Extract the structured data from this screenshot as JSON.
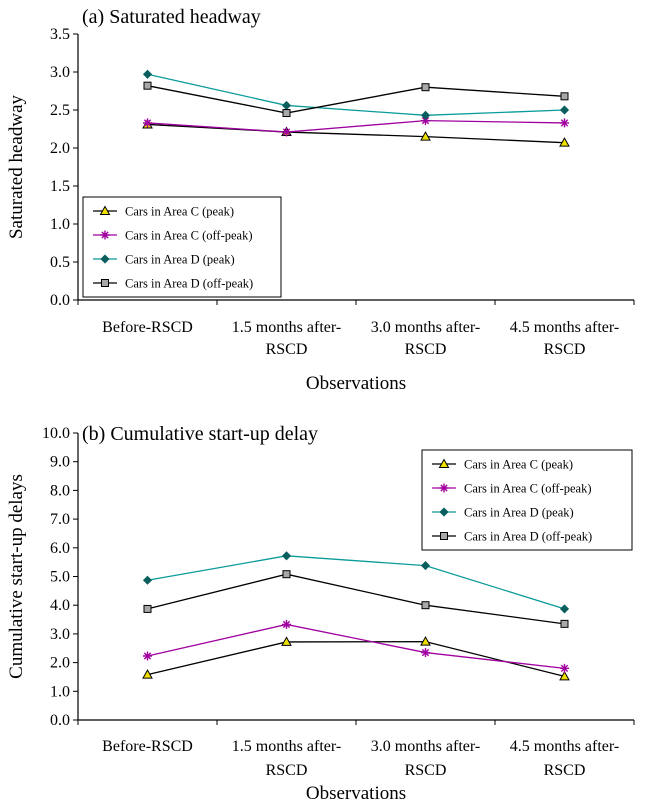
{
  "chart_data": [
    {
      "type": "line",
      "title": "(a) Saturated headway",
      "xlabel": "Observations",
      "ylabel": "Saturated headway",
      "ylim": [
        0,
        3.5
      ],
      "yticks": [
        "0.0",
        "0.5",
        "1.0",
        "1.5",
        "2.0",
        "2.5",
        "3.0",
        "3.5"
      ],
      "categories": [
        [
          "Before-RSCD"
        ],
        [
          "1.5 months after-",
          "RSCD"
        ],
        [
          "3.0 months after-",
          "RSCD"
        ],
        [
          "4.5 months after-",
          "RSCD"
        ]
      ],
      "legend_position": "bottom-left",
      "grid": false,
      "series": [
        {
          "name": "Cars in Area C (peak)",
          "values": [
            2.31,
            2.21,
            2.15,
            2.07
          ],
          "marker": "triangle",
          "line_color": "#000000",
          "marker_color": "#f0e000"
        },
        {
          "name": "Cars in Area C (off-peak)",
          "values": [
            2.33,
            2.21,
            2.36,
            2.33
          ],
          "marker": "star",
          "line_color": "#a000a0",
          "marker_color": "#a000a0"
        },
        {
          "name": "Cars in Area D (peak)",
          "values": [
            2.97,
            2.56,
            2.43,
            2.5
          ],
          "marker": "diamond",
          "line_color": "#0a9b9b",
          "marker_color": "#0a5e5e"
        },
        {
          "name": "Cars in Area D (off-peak)",
          "values": [
            2.82,
            2.46,
            2.8,
            2.68
          ],
          "marker": "square",
          "line_color": "#000000",
          "marker_color": "#a8a8a8"
        }
      ]
    },
    {
      "type": "line",
      "title": "(b) Cumulative start-up delay",
      "xlabel": "Observations",
      "ylabel": "Cumulative start-up delays",
      "ylim": [
        0,
        10
      ],
      "yticks": [
        "0.0",
        "1.0",
        "2.0",
        "3.0",
        "4.0",
        "5.0",
        "6.0",
        "7.0",
        "8.0",
        "9.0",
        "10.0"
      ],
      "categories": [
        [
          "Before-RSCD"
        ],
        [
          "1.5 months after-",
          "RSCD"
        ],
        [
          "3.0 months after-",
          "RSCD"
        ],
        [
          "4.5 months after-",
          "RSCD"
        ]
      ],
      "legend_position": "top-right",
      "grid": false,
      "series": [
        {
          "name": "Cars in Area C (peak)",
          "values": [
            1.58,
            2.72,
            2.73,
            1.52
          ],
          "marker": "triangle",
          "line_color": "#000000",
          "marker_color": "#f0e000"
        },
        {
          "name": "Cars in Area C (off-peak)",
          "values": [
            2.23,
            3.33,
            2.35,
            1.8
          ],
          "marker": "star",
          "line_color": "#a000a0",
          "marker_color": "#a000a0"
        },
        {
          "name": "Cars in Area D (peak)",
          "values": [
            4.87,
            5.72,
            5.38,
            3.87
          ],
          "marker": "diamond",
          "line_color": "#0a9b9b",
          "marker_color": "#0a5e5e"
        },
        {
          "name": "Cars in Area D (off-peak)",
          "values": [
            3.87,
            5.08,
            4.0,
            3.35
          ],
          "marker": "square",
          "line_color": "#000000",
          "marker_color": "#a8a8a8"
        }
      ]
    }
  ]
}
